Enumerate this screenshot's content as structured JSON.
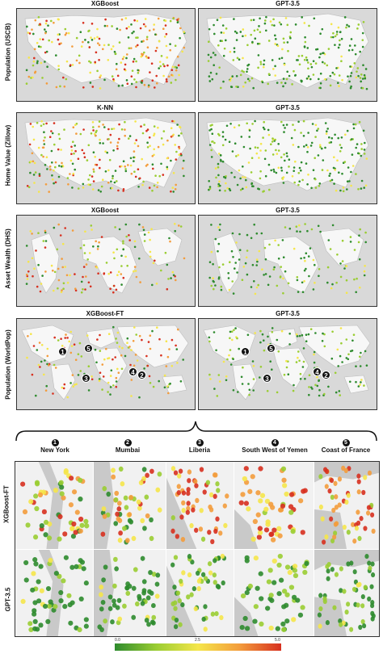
{
  "grid": {
    "rows": [
      {
        "label": "Population (USCB)",
        "left_title": "XGBoost",
        "right_title": "GPT-3.5",
        "region": "us"
      },
      {
        "label": "Home Value (Zillow)",
        "left_title": "K-NN",
        "right_title": "GPT-3.5",
        "region": "us"
      },
      {
        "label": "Asset Wealth (DHS)",
        "left_title": "XGBoost",
        "right_title": "GPT-3.5",
        "region": "tropics"
      },
      {
        "label": "Population (WorldPop)",
        "left_title": "XGBoost-FT",
        "right_title": "GPT-3.5",
        "region": "world"
      }
    ],
    "markers": [
      "1",
      "2",
      "3",
      "4",
      "5"
    ]
  },
  "zoom": {
    "columns": [
      {
        "num": "1",
        "name": "New York"
      },
      {
        "num": "2",
        "name": "Mumbai"
      },
      {
        "num": "3",
        "name": "Liberia"
      },
      {
        "num": "4",
        "name": "South West of Yemen"
      },
      {
        "num": "5",
        "name": "Coast of France"
      }
    ],
    "rows": [
      "XGBoost-FT",
      "GPT-3.5"
    ]
  },
  "colorbar": {
    "ticks": [
      "0.0",
      "2.5",
      "5.0"
    ],
    "colors": [
      "#2e8b2e",
      "#9acd32",
      "#f5e64a",
      "#f39c3c",
      "#d7301f"
    ]
  }
}
